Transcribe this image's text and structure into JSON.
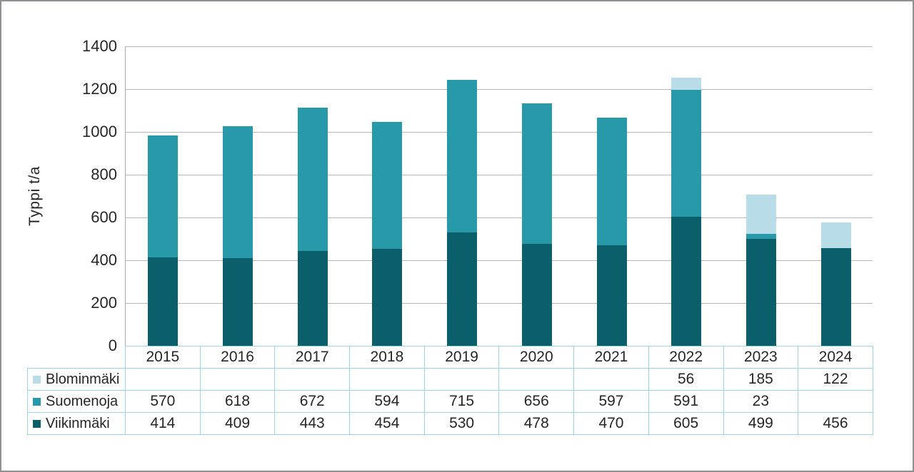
{
  "chart_data": {
    "type": "bar",
    "stacked": true,
    "title": "",
    "xlabel": "",
    "ylabel": "Typpi t/a",
    "ylim": [
      0,
      1400
    ],
    "yticks": [
      0,
      200,
      400,
      600,
      800,
      1000,
      1200,
      1400
    ],
    "grid": true,
    "legend_position": "table-left",
    "categories": [
      "2015",
      "2016",
      "2017",
      "2018",
      "2019",
      "2020",
      "2021",
      "2022",
      "2023",
      "2024"
    ],
    "series": [
      {
        "name": "Blominmäki",
        "color": "#b9dde8",
        "values": [
          null,
          null,
          null,
          null,
          null,
          null,
          null,
          56,
          185,
          122
        ]
      },
      {
        "name": "Suomenoja",
        "color": "#2799a9",
        "values": [
          570,
          618,
          672,
          594,
          715,
          656,
          597,
          591,
          23,
          null
        ]
      },
      {
        "name": "Viikinmäki",
        "color": "#0b5f6b",
        "values": [
          414,
          409,
          443,
          454,
          530,
          478,
          470,
          605,
          499,
          456
        ]
      }
    ],
    "stack_order": [
      "Viikinmäki",
      "Suomenoja",
      "Blominmäki"
    ],
    "colors": {
      "gridline": "#b8b8b8",
      "axis_line": "#ababab",
      "table_border": "#9cd5df",
      "text": "#262626",
      "frame_border": "#8f8f94",
      "background": "#ffffff"
    }
  }
}
